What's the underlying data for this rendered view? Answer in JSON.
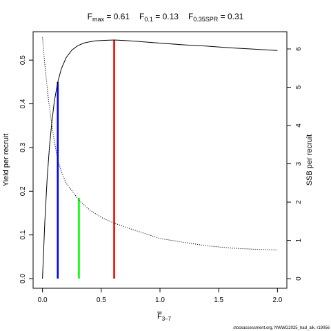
{
  "chart_data": {
    "type": "line",
    "title_parts": [
      {
        "base": "F",
        "sub": "max",
        "text": " = 0.61"
      },
      {
        "base": "F",
        "sub": "0.1",
        "text": " = 0.13"
      },
      {
        "base": "F",
        "sub": "0.35SPR",
        "text": " = 0.31"
      }
    ],
    "xlabel": {
      "base": "F",
      "sub": "3–7"
    },
    "ylabel_left": "Yield per recruit",
    "ylabel_right": "SSB per recruit",
    "xlim": [
      -0.08,
      2.08
    ],
    "ylim_left": [
      -0.022,
      0.565
    ],
    "ylim_right": [
      -0.25,
      6.45
    ],
    "x_ticks": [
      0.0,
      0.5,
      1.0,
      1.5,
      2.0
    ],
    "x_tick_labels": [
      "0.0",
      "0.5",
      "1.0",
      "1.5",
      "2.0"
    ],
    "y_left_ticks": [
      0.0,
      0.1,
      0.2,
      0.3,
      0.4,
      0.5
    ],
    "y_left_tick_labels": [
      "0.0",
      "0.1",
      "0.2",
      "0.3",
      "0.4",
      "0.5"
    ],
    "y_right_ticks": [
      0,
      1,
      2,
      3,
      4,
      5,
      6
    ],
    "y_right_tick_labels": [
      "0",
      "1",
      "2",
      "3",
      "4",
      "5",
      "6"
    ],
    "series": [
      {
        "axis": "left",
        "style": "solid",
        "color": "#000000",
        "x": [
          0,
          0.02,
          0.04,
          0.06,
          0.08,
          0.1,
          0.13,
          0.16,
          0.2,
          0.25,
          0.3,
          0.35,
          0.4,
          0.45,
          0.5,
          0.55,
          0.61,
          0.7,
          0.8,
          0.9,
          1.0,
          1.2,
          1.4,
          1.6,
          1.8,
          2.0
        ],
        "y": [
          0.0,
          0.13,
          0.23,
          0.305,
          0.36,
          0.405,
          0.45,
          0.48,
          0.505,
          0.523,
          0.533,
          0.539,
          0.542,
          0.544,
          0.545,
          0.5455,
          0.546,
          0.545,
          0.543,
          0.541,
          0.539,
          0.535,
          0.532,
          0.528,
          0.525,
          0.522
        ]
      },
      {
        "axis": "right",
        "style": "dotted",
        "color": "#000000",
        "x": [
          0,
          0.02,
          0.05,
          0.08,
          0.1,
          0.13,
          0.16,
          0.2,
          0.25,
          0.31,
          0.4,
          0.5,
          0.61,
          0.75,
          0.9,
          1.0,
          1.2,
          1.4,
          1.6,
          1.8,
          2.0
        ],
        "y": [
          6.3,
          5.6,
          4.7,
          4.0,
          3.6,
          3.1,
          2.8,
          2.5,
          2.3,
          2.05,
          1.8,
          1.6,
          1.45,
          1.3,
          1.15,
          1.05,
          0.95,
          0.86,
          0.8,
          0.77,
          0.75
        ]
      }
    ],
    "reference_lines": [
      {
        "name": "F0.1",
        "x": 0.13,
        "y_left": 0.45,
        "color": "#0000ff"
      },
      {
        "name": "F0.35SPR",
        "x": 0.31,
        "y_left": 0.185,
        "color": "#00ff00"
      },
      {
        "name": "Fmax",
        "x": 0.61,
        "y_left": 0.546,
        "color": "#ff0000"
      }
    ],
    "source_note": "stockassessment.org, NWWG2025_had_alk, r19056"
  }
}
